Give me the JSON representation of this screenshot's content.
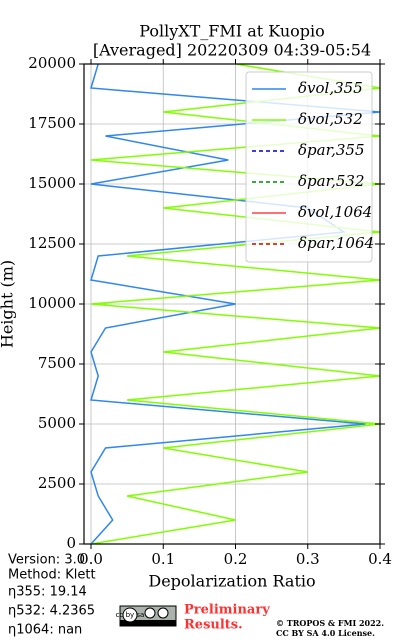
{
  "chart_data": {
    "type": "line",
    "orientation": "profile",
    "title": "PollyXT_FMI at Kuopio",
    "subtitle": "[Averaged] 20220309 04:39-05:54",
    "x_label": "Depolarization Ratio",
    "y_label": "Height (m)",
    "heights": [
      0,
      1000,
      2000,
      3000,
      4000,
      5000,
      6000,
      7000,
      8000,
      9000,
      10000,
      11000,
      12000,
      13000,
      14000,
      15000,
      16000,
      17000,
      18000,
      19000,
      20000
    ],
    "series": [
      {
        "name": "δvol,355",
        "color": "#2f86f0",
        "dash": false,
        "values": [
          0.0,
          0.03,
          0.01,
          0.0,
          0.02,
          0.38,
          0.0,
          0.01,
          0.0,
          0.02,
          0.2,
          0.0,
          0.01,
          0.35,
          0.3,
          0.0,
          0.19,
          0.02,
          0.4,
          0.0,
          0.01
        ]
      },
      {
        "name": "δvol,532",
        "color": "#80ff00",
        "dash": false,
        "values": [
          0.0,
          0.2,
          0.05,
          0.3,
          0.1,
          0.4,
          0.05,
          0.4,
          0.1,
          0.4,
          0.0,
          0.4,
          0.05,
          0.4,
          0.1,
          0.4,
          0.0,
          0.4,
          0.1,
          0.4,
          0.2
        ]
      },
      {
        "name": "δpar,355",
        "color": "#0000cc",
        "dash": true,
        "values": [
          null,
          null,
          null,
          null,
          null,
          null,
          null,
          null,
          null,
          null,
          null,
          null,
          null,
          null,
          null,
          null,
          null,
          null,
          null,
          null,
          null
        ]
      },
      {
        "name": "δpar,532",
        "color": "#008800",
        "dash": true,
        "values": [
          null,
          null,
          null,
          null,
          null,
          null,
          null,
          null,
          null,
          null,
          null,
          null,
          null,
          null,
          null,
          null,
          null,
          null,
          null,
          null,
          null
        ]
      },
      {
        "name": "δvol,1064",
        "color": "#ff4040",
        "dash": false,
        "values": [
          null,
          null,
          null,
          null,
          null,
          null,
          null,
          null,
          null,
          null,
          null,
          null,
          null,
          null,
          null,
          null,
          null,
          null,
          null,
          null,
          null
        ]
      },
      {
        "name": "δpar,1064",
        "color": "#cc0000",
        "dash": true,
        "values": [
          null,
          null,
          null,
          null,
          null,
          null,
          null,
          null,
          null,
          null,
          null,
          null,
          null,
          null,
          null,
          null,
          null,
          null,
          null,
          null,
          null
        ]
      }
    ],
    "xlim": [
      0,
      0.4
    ],
    "xticks": [
      {
        "value": 0,
        "label": "0.0"
      },
      0.1,
      0.2,
      0.3,
      0.4
    ],
    "ylim": [
      0,
      20000
    ],
    "yticks": [
      0,
      2500,
      5000,
      7500,
      10000,
      12500,
      15000,
      17500,
      20000
    ],
    "grid": true,
    "legend": "upper right"
  },
  "info": [
    "Version: 3.0",
    "Method: Klett",
    "η355:  19.14",
    "η532: 4.2365",
    "η1064:    nan"
  ],
  "logo": "cc by sa",
  "notice": [
    "Preliminary",
    "Results."
  ],
  "copyright": [
    "© TROPOS & FMI 2022.",
    "CC BY SA 4.0 License."
  ]
}
